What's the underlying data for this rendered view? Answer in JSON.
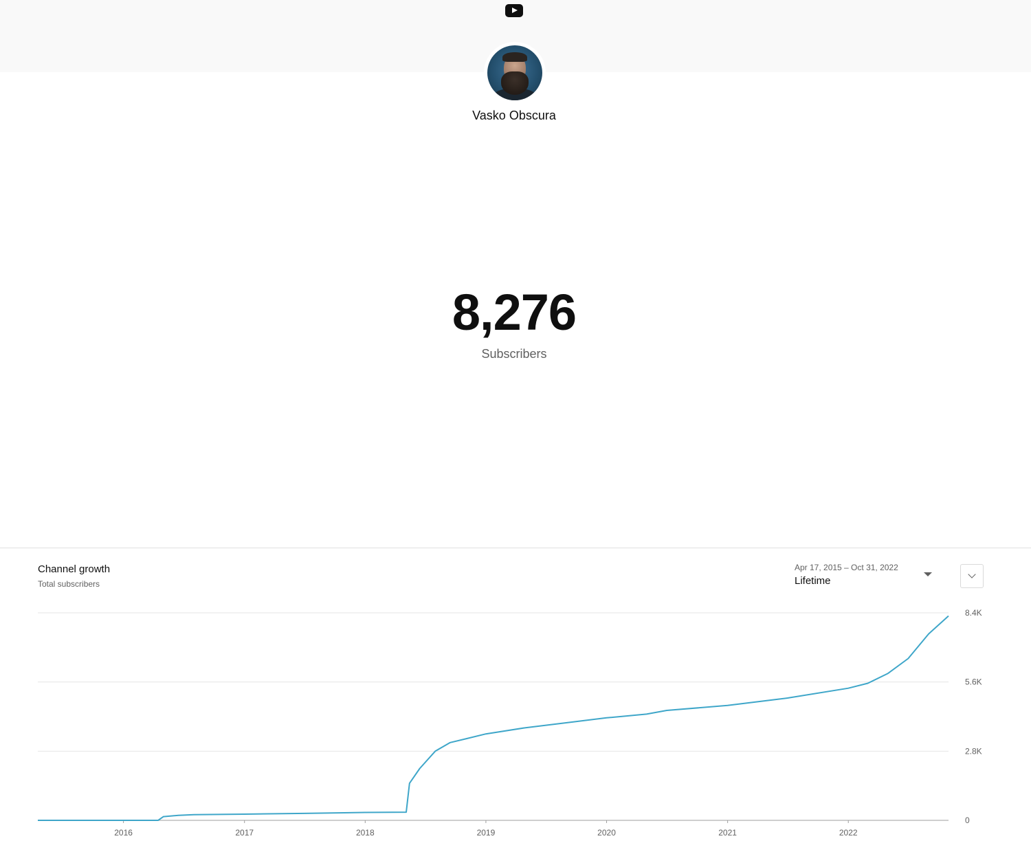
{
  "header": {
    "logo_icon": "youtube-logo-icon"
  },
  "channel": {
    "name": "Vasko Obscura",
    "avatar_icon": "channel-avatar"
  },
  "stats": {
    "subscriber_count": "8,276",
    "subscriber_label": "Subscribers"
  },
  "growth": {
    "title": "Channel growth",
    "subtitle": "Total subscribers",
    "range_dates": "Apr 17, 2015 – Oct 31, 2022",
    "range_label": "Lifetime",
    "expand_icon": "chevron-down-icon"
  },
  "chart_data": {
    "type": "line",
    "title": "",
    "xlabel": "",
    "ylabel": "",
    "x_range": [
      "2015-04-17",
      "2022-10-31"
    ],
    "ylim": [
      0,
      8400
    ],
    "y_ticks": [
      0,
      2800,
      5600,
      8400
    ],
    "y_tick_labels": [
      "0",
      "2.8K",
      "5.6K",
      "8.4K"
    ],
    "x_ticks": [
      "2016-01-01",
      "2017-01-01",
      "2018-01-01",
      "2019-01-01",
      "2020-01-01",
      "2021-01-01",
      "2022-01-01"
    ],
    "x_tick_labels": [
      "2016",
      "2017",
      "2018",
      "2019",
      "2020",
      "2021",
      "2022"
    ],
    "y_axis_position": "right",
    "grid": true,
    "line_color": "#3ea6c9",
    "series": [
      {
        "points": [
          [
            "2015-04-17",
            0
          ],
          [
            "2016-04-15",
            0
          ],
          [
            "2016-05-01",
            150
          ],
          [
            "2016-06-15",
            200
          ],
          [
            "2016-08-01",
            230
          ],
          [
            "2017-01-01",
            250
          ],
          [
            "2017-07-01",
            280
          ],
          [
            "2018-01-01",
            320
          ],
          [
            "2018-05-05",
            330
          ],
          [
            "2018-05-15",
            1500
          ],
          [
            "2018-06-15",
            2100
          ],
          [
            "2018-08-01",
            2800
          ],
          [
            "2018-09-15",
            3150
          ],
          [
            "2018-11-01",
            3300
          ],
          [
            "2019-01-01",
            3500
          ],
          [
            "2019-05-01",
            3750
          ],
          [
            "2019-09-01",
            3950
          ],
          [
            "2020-01-01",
            4150
          ],
          [
            "2020-05-01",
            4300
          ],
          [
            "2020-07-01",
            4450
          ],
          [
            "2021-01-01",
            4650
          ],
          [
            "2021-07-01",
            4950
          ],
          [
            "2022-01-01",
            5350
          ],
          [
            "2022-03-01",
            5550
          ],
          [
            "2022-05-01",
            5950
          ],
          [
            "2022-07-01",
            6550
          ],
          [
            "2022-09-01",
            7550
          ],
          [
            "2022-10-31",
            8276
          ]
        ]
      }
    ]
  }
}
